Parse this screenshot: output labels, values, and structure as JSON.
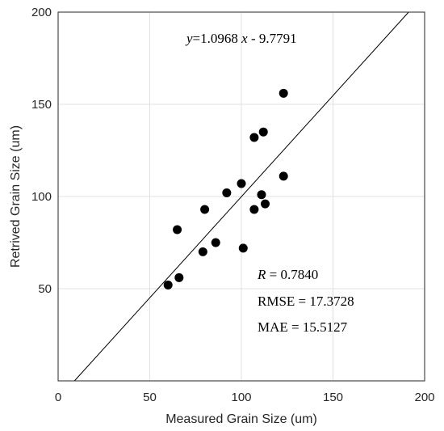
{
  "chart_data": {
    "type": "scatter",
    "xlabel": "Measured Grain Size (um)",
    "ylabel": "Retrived Grain Size (um)",
    "xlim": [
      0,
      200
    ],
    "ylim": [
      0,
      200
    ],
    "xticks": [
      "0",
      "50",
      "100",
      "150",
      "200"
    ],
    "yticks": [
      "50",
      "100",
      "150",
      "200"
    ],
    "grid": true,
    "points": [
      {
        "x": 60,
        "y": 52
      },
      {
        "x": 66,
        "y": 56
      },
      {
        "x": 65,
        "y": 82
      },
      {
        "x": 79,
        "y": 70
      },
      {
        "x": 80,
        "y": 93
      },
      {
        "x": 86,
        "y": 75
      },
      {
        "x": 92,
        "y": 102
      },
      {
        "x": 100,
        "y": 107
      },
      {
        "x": 101,
        "y": 72
      },
      {
        "x": 107,
        "y": 93
      },
      {
        "x": 111,
        "y": 101
      },
      {
        "x": 113,
        "y": 96
      },
      {
        "x": 107,
        "y": 132
      },
      {
        "x": 112,
        "y": 135
      },
      {
        "x": 123,
        "y": 111
      },
      {
        "x": 123,
        "y": 156
      }
    ],
    "fit_line": {
      "slope": 1.0968,
      "intercept": -9.7791
    },
    "colors": {
      "points": "#000000",
      "line": "#000000",
      "grid": "#e0e0e0",
      "axes": "#262626"
    }
  },
  "annotations": {
    "equation": {
      "y_var": "y",
      "rest": "=1.0968 ",
      "x_var": "x",
      "tail": " - 9.7791"
    },
    "r": {
      "var": "R",
      "rest": " = 0.7840"
    },
    "rmse": "RMSE = 17.3728",
    "mae": "MAE = 15.5127"
  }
}
